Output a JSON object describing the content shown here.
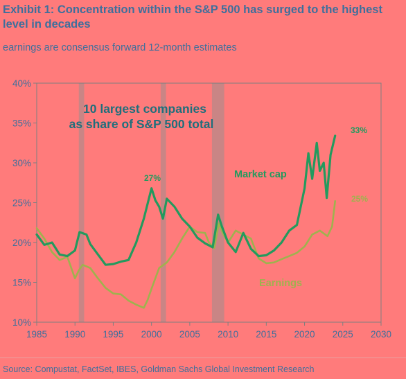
{
  "header": {
    "title": "Exhibit 1: Concentration within the S&P 500 has surged to the highest level in decades",
    "subtitle": "earnings are consensus forward 12-month estimates"
  },
  "footer": {
    "source": "Source: Compustat, FactSet, IBES, Goldman Sachs Global Investment Research"
  },
  "colors": {
    "background": "#FF7B7B",
    "market_cap": "#239A5E",
    "earnings": "#9FB24E",
    "recession": "#C98585",
    "text": "#3F6F9C",
    "annotation": "#1F6F7C"
  },
  "chart_data": {
    "type": "line",
    "title": "",
    "annotation": "10 largest companies as share of S&P 500 total",
    "annotation_lines": [
      "10 largest companies",
      "as share of S&P 500 total"
    ],
    "xlabel": "",
    "ylabel": "",
    "xlim": [
      1985,
      2030
    ],
    "ylim": [
      10,
      40
    ],
    "x_ticks": [
      1985,
      1990,
      1995,
      2000,
      2005,
      2010,
      2015,
      2020,
      2025,
      2030
    ],
    "y_ticks": [
      10,
      15,
      20,
      25,
      30,
      35,
      40
    ],
    "y_tick_labels": [
      "10%",
      "15%",
      "20%",
      "25%",
      "30%",
      "35%",
      "40%"
    ],
    "grid": false,
    "recessions": [
      [
        1990.5,
        1991.2
      ],
      [
        2001.2,
        2001.9
      ],
      [
        2007.9,
        2009.5
      ]
    ],
    "series": [
      {
        "name": "Market cap",
        "end_label": "33%",
        "peak_label": "27%",
        "points": [
          [
            1985,
            21.0
          ],
          [
            1986,
            19.7
          ],
          [
            1987,
            20.0
          ],
          [
            1988,
            18.5
          ],
          [
            1989,
            18.3
          ],
          [
            1990,
            19.0
          ],
          [
            1990.6,
            21.3
          ],
          [
            1991.5,
            21.0
          ],
          [
            1992,
            19.8
          ],
          [
            1993,
            18.5
          ],
          [
            1994,
            17.2
          ],
          [
            1995,
            17.3
          ],
          [
            1996,
            17.6
          ],
          [
            1997,
            17.8
          ],
          [
            1998,
            20.0
          ],
          [
            1999,
            23.0
          ],
          [
            2000,
            26.8
          ],
          [
            2000.5,
            25.3
          ],
          [
            2001,
            24.5
          ],
          [
            2001.5,
            23.0
          ],
          [
            2002,
            25.5
          ],
          [
            2003,
            24.5
          ],
          [
            2004,
            23.0
          ],
          [
            2005,
            22.0
          ],
          [
            2006,
            20.6
          ],
          [
            2007,
            19.9
          ],
          [
            2008,
            19.4
          ],
          [
            2008.7,
            23.5
          ],
          [
            2009.2,
            22.0
          ],
          [
            2010,
            20.0
          ],
          [
            2011,
            18.8
          ],
          [
            2012,
            21.2
          ],
          [
            2013,
            19.2
          ],
          [
            2014,
            18.3
          ],
          [
            2015,
            18.4
          ],
          [
            2016,
            19.0
          ],
          [
            2017,
            20.0
          ],
          [
            2018,
            21.5
          ],
          [
            2019,
            22.2
          ],
          [
            2020,
            26.8
          ],
          [
            2020.5,
            31.2
          ],
          [
            2021,
            28.0
          ],
          [
            2021.6,
            32.5
          ],
          [
            2022,
            29.0
          ],
          [
            2022.5,
            30.0
          ],
          [
            2022.9,
            25.6
          ],
          [
            2023.4,
            31.0
          ],
          [
            2024,
            33.4
          ]
        ]
      },
      {
        "name": "Earnings",
        "end_label": "25%",
        "points": [
          [
            1985,
            21.8
          ],
          [
            1986,
            20.5
          ],
          [
            1987,
            18.8
          ],
          [
            1988,
            17.8
          ],
          [
            1989,
            18.2
          ],
          [
            1990,
            15.5
          ],
          [
            1990.5,
            16.5
          ],
          [
            1991,
            17.2
          ],
          [
            1992,
            16.8
          ],
          [
            1993,
            15.5
          ],
          [
            1994,
            14.3
          ],
          [
            1995,
            13.6
          ],
          [
            1996,
            13.5
          ],
          [
            1997,
            12.7
          ],
          [
            1998,
            12.2
          ],
          [
            1999,
            11.8
          ],
          [
            1999.5,
            12.8
          ],
          [
            2000,
            14.2
          ],
          [
            2001,
            16.8
          ],
          [
            2002,
            17.5
          ],
          [
            2003,
            18.8
          ],
          [
            2004,
            20.5
          ],
          [
            2005,
            22.0
          ],
          [
            2006,
            21.3
          ],
          [
            2007,
            21.2
          ],
          [
            2007.5,
            20.0
          ],
          [
            2008.2,
            19.3
          ],
          [
            2008.8,
            22.4
          ],
          [
            2009.3,
            21.2
          ],
          [
            2010,
            20.0
          ],
          [
            2011,
            21.5
          ],
          [
            2012,
            21.0
          ],
          [
            2013,
            20.5
          ],
          [
            2014,
            18.0
          ],
          [
            2015,
            17.4
          ],
          [
            2016,
            17.5
          ],
          [
            2017,
            17.9
          ],
          [
            2018,
            18.3
          ],
          [
            2019,
            18.7
          ],
          [
            2020,
            19.5
          ],
          [
            2021,
            21.0
          ],
          [
            2022,
            21.5
          ],
          [
            2023,
            20.8
          ],
          [
            2023.6,
            22.0
          ],
          [
            2024,
            25.2
          ]
        ]
      }
    ]
  }
}
